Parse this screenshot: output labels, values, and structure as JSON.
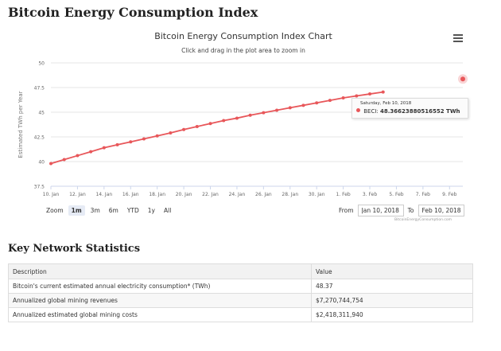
{
  "page": {
    "title": "Bitcoin Energy Consumption Index"
  },
  "chart": {
    "title": "Bitcoin Energy Consumption Index Chart",
    "subtitle": "Click and drag in the plot area to zoom in",
    "menu_icon": "hamburger-menu-icon",
    "zoom": {
      "label": "Zoom",
      "buttons": [
        "1m",
        "3m",
        "6m",
        "YTD",
        "1y",
        "All"
      ],
      "active": "1m"
    },
    "range": {
      "from_label": "From",
      "from_value": "Jan 10, 2018",
      "to_label": "To",
      "to_value": "Feb 10, 2018"
    },
    "credit": "BitcoinEnergyConsumption.com",
    "tooltip": {
      "date": "Saturday, Feb 10, 2018",
      "series": "BECI:",
      "value": "48.36623880516552 TWh"
    }
  },
  "chart_data": {
    "type": "line",
    "title": "Bitcoin Energy Consumption Index Chart",
    "ylabel": "Estimated TWh per Year",
    "xlabel": "",
    "ylim": [
      37.5,
      50
    ],
    "yticks": [
      "37.5",
      "40",
      "42.5",
      "45",
      "47.5",
      "50"
    ],
    "xticks": [
      "10. Jan",
      "12. Jan",
      "14. Jan",
      "16. Jan",
      "18. Jan",
      "20. Jan",
      "22. Jan",
      "24. Jan",
      "26. Jan",
      "28. Jan",
      "30. Jan",
      "1. Feb",
      "3. Feb",
      "5. Feb",
      "7. Feb",
      "9. Feb"
    ],
    "grid": true,
    "legend": "none",
    "color": "#e8575a",
    "series": [
      {
        "name": "BECI",
        "x": [
          "Jan 10",
          "Jan 11",
          "Jan 12",
          "Jan 13",
          "Jan 14",
          "Jan 15",
          "Jan 16",
          "Jan 17",
          "Jan 18",
          "Jan 19",
          "Jan 20",
          "Jan 21",
          "Jan 22",
          "Jan 23",
          "Jan 24",
          "Jan 25",
          "Jan 26",
          "Jan 27",
          "Jan 28",
          "Jan 29",
          "Jan 30",
          "Jan 31",
          "Feb 1",
          "Feb 2",
          "Feb 3",
          "Feb 4",
          "Feb 10"
        ],
        "values": [
          39.8,
          40.2,
          40.6,
          41.0,
          41.4,
          41.7,
          42.0,
          42.3,
          42.6,
          42.9,
          43.25,
          43.55,
          43.85,
          44.15,
          44.4,
          44.7,
          44.95,
          45.2,
          45.45,
          45.7,
          45.95,
          46.2,
          46.45,
          46.65,
          46.85,
          47.05,
          48.37
        ]
      }
    ]
  },
  "stats": {
    "title": "Key Network Statistics",
    "headers": {
      "description": "Description",
      "value": "Value"
    },
    "rows": [
      {
        "description": "Bitcoin's current estimated annual electricity consumption* (TWh)",
        "value": "48.37"
      },
      {
        "description": "Annualized global mining revenues",
        "value": "$7,270,744,754"
      },
      {
        "description": "Annualized estimated global mining costs",
        "value": "$2,418,311,940"
      }
    ]
  }
}
